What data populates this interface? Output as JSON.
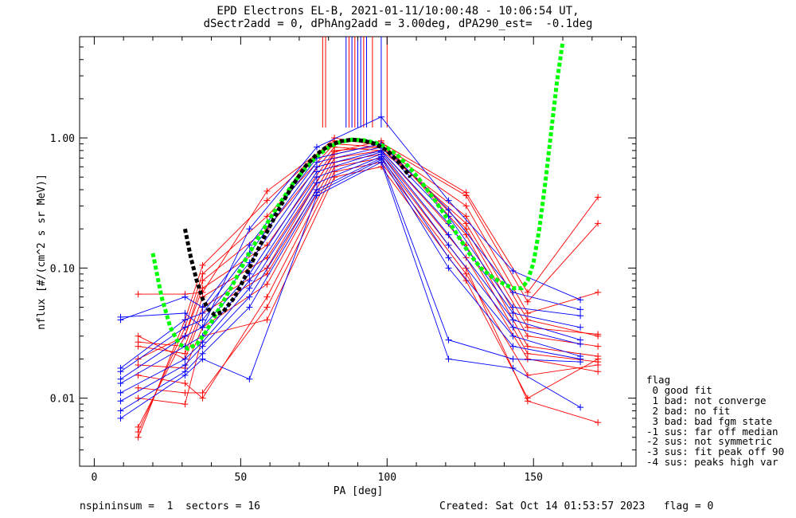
{
  "chart_data": {
    "type": "line",
    "title": "EPD Electrons EL-B, 2021-01-11/10:00:48 - 10:06:54 UT,",
    "subtitle": "dSectr2add = 0, dPhAng2add = 3.00deg, dPA290_est=  -0.1deg",
    "xlabel": "PA [deg]",
    "ylabel": "nflux [#/(cm^2 s sr MeV)]",
    "xlim": [
      -5,
      185
    ],
    "ylim": [
      0.003,
      6
    ],
    "yscale": "log",
    "x_ticks": [
      {
        "v": 0,
        "label": "0"
      },
      {
        "v": 50,
        "label": "50"
      },
      {
        "v": 100,
        "label": "100"
      },
      {
        "v": 150,
        "label": "150"
      }
    ],
    "y_ticks": [
      {
        "v": 0.01,
        "label": "0.01"
      },
      {
        "v": 0.1,
        "label": "0.10"
      },
      {
        "v": 1,
        "label": "1.00"
      }
    ],
    "colors": {
      "red": "#ff0000",
      "blue": "#0000ff",
      "fit": "#00ff00",
      "fit2": "#000000"
    },
    "series": [
      {
        "color": "#ff0000",
        "x": [
          15,
          31,
          37,
          59,
          82,
          98,
          127,
          148,
          172
        ],
        "y": [
          0.063,
          0.063,
          0.065,
          0.39,
          0.95,
          0.92,
          0.38,
          0.065,
          0.35
        ]
      },
      {
        "color": "#ff0000",
        "x": [
          15,
          31,
          37,
          59,
          82,
          98,
          127,
          148,
          172
        ],
        "y": [
          0.005,
          0.04,
          0.105,
          0.33,
          1.0,
          0.87,
          0.36,
          0.055,
          0.22
        ]
      },
      {
        "color": "#ff0000",
        "x": [
          15,
          31,
          37,
          59,
          82,
          98,
          127,
          148,
          172
        ],
        "y": [
          0.0055,
          0.035,
          0.09,
          0.25,
          0.9,
          0.85,
          0.3,
          0.045,
          0.065
        ]
      },
      {
        "color": "#ff0000",
        "x": [
          15,
          31,
          37,
          59,
          82,
          98,
          127,
          148,
          172
        ],
        "y": [
          0.006,
          0.03,
          0.08,
          0.2,
          0.85,
          0.8,
          0.25,
          0.04,
          0.03
        ]
      },
      {
        "color": "#ff0000",
        "x": [
          15,
          31,
          37,
          59,
          82,
          98,
          127,
          148,
          172
        ],
        "y": [
          0.02,
          0.03,
          0.07,
          0.15,
          0.8,
          0.85,
          0.22,
          0.035,
          0.031
        ]
      },
      {
        "color": "#ff0000",
        "x": [
          15,
          31,
          37,
          59,
          82,
          98,
          127,
          148,
          172
        ],
        "y": [
          0.027,
          0.025,
          0.06,
          0.12,
          0.75,
          0.9,
          0.2,
          0.03,
          0.025
        ]
      },
      {
        "color": "#ff0000",
        "x": [
          15,
          31,
          37,
          59,
          82,
          98,
          127,
          148,
          172
        ],
        "y": [
          0.025,
          0.022,
          0.05,
          0.1,
          0.78,
          0.95,
          0.18,
          0.025,
          0.021
        ]
      },
      {
        "color": "#ff0000",
        "x": [
          15,
          31,
          37,
          59,
          82,
          98,
          127,
          148,
          172
        ],
        "y": [
          0.03,
          0.02,
          0.045,
          0.09,
          0.7,
          0.8,
          0.15,
          0.022,
          0.019
        ]
      },
      {
        "color": "#ff0000",
        "x": [
          15,
          31,
          37,
          59,
          82,
          98,
          127,
          148,
          172
        ],
        "y": [
          0.018,
          0.017,
          0.035,
          0.075,
          0.65,
          0.75,
          0.12,
          0.02,
          0.016
        ]
      },
      {
        "color": "#ff0000",
        "x": [
          15,
          31,
          37,
          59,
          82,
          98,
          127,
          148,
          172
        ],
        "y": [
          0.015,
          0.013,
          0.01,
          0.06,
          0.6,
          0.7,
          0.1,
          0.0095,
          0.0065
        ]
      },
      {
        "color": "#ff0000",
        "x": [
          15,
          31,
          37,
          59,
          82,
          98,
          127,
          148,
          172
        ],
        "y": [
          0.012,
          0.011,
          0.011,
          0.05,
          0.55,
          0.65,
          0.09,
          0.015,
          0.018
        ]
      },
      {
        "color": "#ff0000",
        "x": [
          15,
          31,
          37,
          59,
          82,
          98,
          127,
          148,
          172
        ],
        "y": [
          0.01,
          0.009,
          0.03,
          0.04,
          0.5,
          0.6,
          0.08,
          0.01,
          0.02
        ]
      },
      {
        "color": "#0000ff",
        "x": [
          9,
          31,
          37,
          53,
          76,
          98,
          121,
          143,
          166
        ],
        "y": [
          0.042,
          0.045,
          0.035,
          0.2,
          0.85,
          1.45,
          0.33,
          0.095,
          0.057
        ]
      },
      {
        "color": "#0000ff",
        "x": [
          9,
          31,
          37,
          53,
          76,
          98,
          121,
          143,
          166
        ],
        "y": [
          0.04,
          0.06,
          0.05,
          0.15,
          0.7,
          0.9,
          0.28,
          0.065,
          0.048
        ]
      },
      {
        "color": "#0000ff",
        "x": [
          9,
          31,
          37,
          53,
          76,
          98,
          121,
          143,
          166
        ],
        "y": [
          0.017,
          0.04,
          0.045,
          0.13,
          0.65,
          0.85,
          0.25,
          0.05,
          0.043
        ]
      },
      {
        "color": "#0000ff",
        "x": [
          9,
          31,
          37,
          53,
          76,
          98,
          121,
          143,
          166
        ],
        "y": [
          0.016,
          0.035,
          0.04,
          0.11,
          0.6,
          0.8,
          0.22,
          0.045,
          0.035
        ]
      },
      {
        "color": "#0000ff",
        "x": [
          9,
          31,
          37,
          53,
          76,
          98,
          121,
          143,
          166
        ],
        "y": [
          0.014,
          0.03,
          0.035,
          0.09,
          0.55,
          0.78,
          0.18,
          0.04,
          0.028
        ]
      },
      {
        "color": "#0000ff",
        "x": [
          9,
          31,
          37,
          53,
          76,
          98,
          121,
          143,
          166
        ],
        "y": [
          0.013,
          0.025,
          0.03,
          0.08,
          0.5,
          0.75,
          0.15,
          0.035,
          0.026
        ]
      },
      {
        "color": "#0000ff",
        "x": [
          9,
          31,
          37,
          53,
          76,
          98,
          121,
          143,
          166
        ],
        "y": [
          0.011,
          0.02,
          0.027,
          0.07,
          0.45,
          0.72,
          0.12,
          0.03,
          0.021
        ]
      },
      {
        "color": "#0000ff",
        "x": [
          9,
          31,
          37,
          53,
          76,
          98,
          121,
          143,
          166
        ],
        "y": [
          0.0095,
          0.018,
          0.025,
          0.06,
          0.4,
          0.7,
          0.1,
          0.025,
          0.02
        ]
      },
      {
        "color": "#0000ff",
        "x": [
          9,
          31,
          37,
          53,
          76,
          98,
          121,
          143,
          166
        ],
        "y": [
          0.008,
          0.016,
          0.022,
          0.05,
          0.38,
          0.68,
          0.028,
          0.02,
          0.019
        ]
      },
      {
        "color": "#0000ff",
        "x": [
          9,
          31,
          37,
          53,
          76,
          98,
          121,
          143,
          166
        ],
        "y": [
          0.007,
          0.015,
          0.02,
          0.014,
          0.36,
          0.65,
          0.02,
          0.017,
          0.0085
        ]
      }
    ],
    "fit_curves": [
      {
        "color": "#00ff00",
        "x": [
          20,
          23,
          26,
          29,
          32,
          35,
          38,
          41,
          44,
          48,
          52,
          56,
          60,
          64,
          68,
          72,
          76,
          80,
          84,
          88,
          92,
          96,
          100,
          104,
          108,
          112,
          116,
          120,
          124,
          128,
          132,
          136,
          140,
          143,
          146,
          148,
          150,
          152,
          154,
          156,
          158,
          160
        ],
        "y": [
          0.13,
          0.06,
          0.035,
          0.026,
          0.024,
          0.026,
          0.032,
          0.042,
          0.055,
          0.08,
          0.12,
          0.17,
          0.24,
          0.33,
          0.45,
          0.58,
          0.72,
          0.85,
          0.93,
          0.97,
          0.96,
          0.92,
          0.84,
          0.72,
          0.58,
          0.45,
          0.34,
          0.25,
          0.18,
          0.13,
          0.1,
          0.085,
          0.075,
          0.07,
          0.07,
          0.08,
          0.11,
          0.2,
          0.45,
          1.1,
          2.7,
          5.5
        ]
      },
      {
        "color": "#000000",
        "x": [
          31,
          33,
          35,
          37,
          39,
          41,
          44,
          48,
          52,
          56,
          60,
          64,
          68,
          72,
          76,
          80,
          84,
          88,
          92,
          96,
          100,
          104,
          108
        ],
        "y": [
          0.2,
          0.12,
          0.08,
          0.058,
          0.048,
          0.044,
          0.046,
          0.06,
          0.09,
          0.14,
          0.21,
          0.31,
          0.44,
          0.6,
          0.75,
          0.87,
          0.94,
          0.97,
          0.95,
          0.9,
          0.8,
          0.65,
          0.5
        ]
      }
    ],
    "vertical_lines": [
      {
        "x": 78,
        "color": "#ff0000"
      },
      {
        "x": 79,
        "color": "#ff0000"
      },
      {
        "x": 86,
        "color": "#0000ff"
      },
      {
        "x": 87,
        "color": "#ff0000"
      },
      {
        "x": 88,
        "color": "#0000ff"
      },
      {
        "x": 89,
        "color": "#ff0000"
      },
      {
        "x": 90,
        "color": "#0000ff"
      },
      {
        "x": 91,
        "color": "#0000ff"
      },
      {
        "x": 92,
        "color": "#ff0000"
      },
      {
        "x": 93,
        "color": "#0000ff"
      },
      {
        "x": 95,
        "color": "#ff0000"
      },
      {
        "x": 98,
        "color": "#0000ff"
      },
      {
        "x": 100,
        "color": "#ff0000"
      }
    ]
  },
  "legend": {
    "title": "flag",
    "items": [
      " 0 good fit",
      " 1 bad: not converge",
      " 2 bad: no fit",
      " 3 bad: bad fgm state",
      "-1 sus: far off median",
      "-2 sus: not symmetric",
      "-3 sus: fit peak off 90",
      "-4 sus: peaks high var"
    ]
  },
  "footer": {
    "left": "nspininsum =  1  sectors = 16",
    "right": "Created: Sat Oct 14 01:53:57 2023   flag = 0"
  }
}
